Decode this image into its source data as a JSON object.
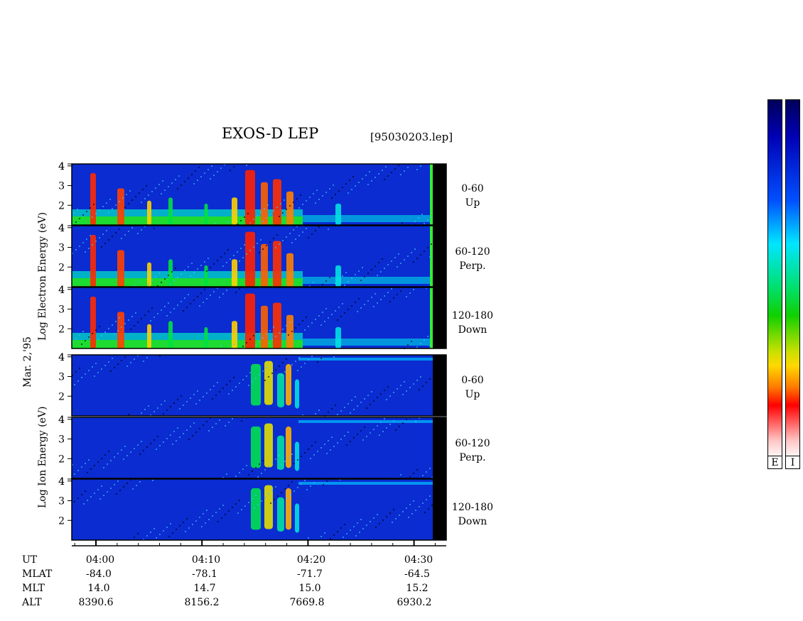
{
  "title": "EXOS-D LEP",
  "filename": "[95030203.lep]",
  "date_label": "Mar. 2,'95",
  "ylabels": {
    "electron": "Log  Electron  Energy (eV)",
    "ion": "Log   Ion   Energy (eV)"
  },
  "bands": [
    {
      "range": "0-60",
      "dir": "Up"
    },
    {
      "range": "60-120",
      "dir": "Perp."
    },
    {
      "range": "120-180",
      "dir": "Down"
    },
    {
      "range": "0-60",
      "dir": "Up"
    },
    {
      "range": "60-120",
      "dir": "Perp."
    },
    {
      "range": "120-180",
      "dir": "Down"
    }
  ],
  "colorbar_labels": [
    "E",
    "I"
  ],
  "colors": {
    "background": "#ffffff",
    "panel": "#0a2cd0",
    "strip": "#000000",
    "marker": "#33ee33"
  },
  "table": {
    "row_labels": [
      "UT",
      "MLAT",
      "MLT",
      "ALT"
    ],
    "columns": [
      {
        "UT": "04:00",
        "MLAT": "-84.0",
        "MLT": "14.0",
        "ALT": "8390.6"
      },
      {
        "UT": "04:10",
        "MLAT": "-78.1",
        "MLT": "14.7",
        "ALT": "8156.2"
      },
      {
        "UT": "04:20",
        "MLAT": "-71.7",
        "MLT": "15.0",
        "ALT": "7669.8"
      },
      {
        "UT": "04:30",
        "MLAT": "-64.5",
        "MLT": "15.2",
        "ALT": "6930.2"
      }
    ]
  },
  "chart_data": {
    "type": "heatmap",
    "title": "EXOS-D LEP",
    "xlabel": "UT",
    "ylabel": "Log Energy (eV)",
    "x_ticks": [
      "04:00",
      "04:10",
      "04:20",
      "04:30"
    ],
    "y_ticks": [
      2,
      3,
      4
    ],
    "ylim": [
      1,
      4.1
    ],
    "panels": [
      {
        "species": "Electron",
        "pitch_angle": "0-60",
        "dir": "Up"
      },
      {
        "species": "Electron",
        "pitch_angle": "60-120",
        "dir": "Perp."
      },
      {
        "species": "Electron",
        "pitch_angle": "120-180",
        "dir": "Down"
      },
      {
        "species": "Ion",
        "pitch_angle": "0-60",
        "dir": "Up"
      },
      {
        "species": "Ion",
        "pitch_angle": "60-120",
        "dir": "Perp."
      },
      {
        "species": "Ion",
        "pitch_angle": "120-180",
        "dir": "Down"
      }
    ]
  }
}
